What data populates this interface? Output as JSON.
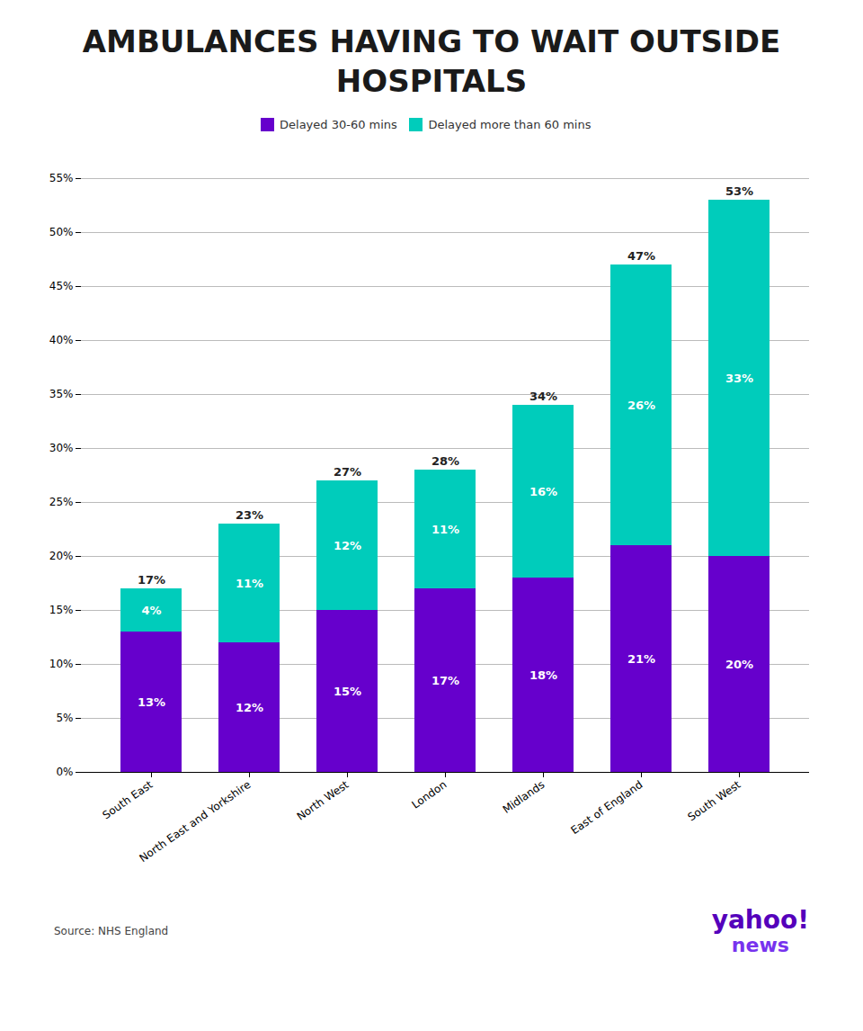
{
  "chart_data": {
    "type": "bar",
    "title": "AMBULANCES HAVING TO WAIT OUTSIDE HOSPITALS",
    "categories": [
      "South East",
      "North East and Yorkshire",
      "North West",
      "London",
      "Midlands",
      "East of England",
      "South West"
    ],
    "series": [
      {
        "name": "Delayed 30-60 mins",
        "color": "#6600cc",
        "values": [
          13,
          12,
          15,
          17,
          18,
          21,
          20
        ],
        "value_labels": [
          "13%",
          "12%",
          "15%",
          "17%",
          "18%",
          "21%",
          "20%"
        ]
      },
      {
        "name": "Delayed more than 60 mins",
        "color": "#00ccbb",
        "values": [
          4,
          11,
          12,
          11,
          16,
          26,
          33
        ],
        "value_labels": [
          "4%",
          "11%",
          "12%",
          "11%",
          "16%",
          "26%",
          "33%"
        ]
      }
    ],
    "totals": [
      17,
      23,
      27,
      28,
      34,
      47,
      53
    ],
    "total_labels": [
      "17%",
      "23%",
      "27%",
      "28%",
      "34%",
      "47%",
      "53%"
    ],
    "stacked": true,
    "data_labels": true,
    "grid": true,
    "legend": "top",
    "ylim": [
      0,
      55
    ],
    "yticks": [
      {
        "value": 0,
        "label": "0%"
      },
      {
        "value": 5,
        "label": "5%"
      },
      {
        "value": 10,
        "label": "10%"
      },
      {
        "value": 15,
        "label": "15%"
      },
      {
        "value": 20,
        "label": "20%"
      },
      {
        "value": 25,
        "label": "25%"
      },
      {
        "value": 30,
        "label": "30%"
      },
      {
        "value": 35,
        "label": "35%"
      },
      {
        "value": 40,
        "label": "40%"
      },
      {
        "value": 45,
        "label": "45%"
      },
      {
        "value": 50,
        "label": "50%"
      },
      {
        "value": 55,
        "label": "55%"
      }
    ],
    "source": "Source: NHS England",
    "annotations": [
      {
        "text": "yahoo!",
        "color": "#5500bb"
      },
      {
        "text": "news",
        "color": "#7733ee"
      }
    ]
  }
}
